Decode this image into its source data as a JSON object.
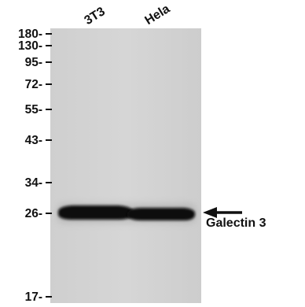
{
  "lanes": [
    "3T3",
    "Hela"
  ],
  "markers": [
    "180-",
    "130-",
    "95-",
    "72-",
    "55-",
    "43-",
    "34-",
    "26-",
    "17-"
  ],
  "target": {
    "label": "Galectin 3"
  },
  "colors": {
    "membrane": "#d2d2d2",
    "band": "#070707",
    "text": "#111111"
  }
}
